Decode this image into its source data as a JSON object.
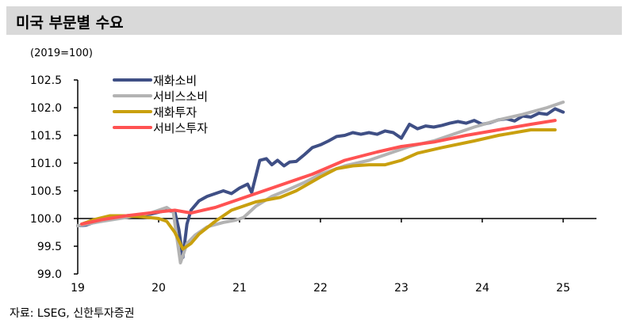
{
  "title": "미국 부문별 수요",
  "source": "자료: LSEG, 신한투자증권",
  "chart_data": {
    "type": "line",
    "title": "미국 부문별 수요",
    "ylabel": "(2019=100)",
    "xlabel": "",
    "xlim": [
      2019,
      2025.6
    ],
    "ylim": [
      99.0,
      102.5
    ],
    "yticks": [
      "102.5",
      "102.0",
      "101.5",
      "101.0",
      "100.5",
      "100.0",
      "99.5",
      "99.0"
    ],
    "ytick_values": [
      102.5,
      102.0,
      101.5,
      101.0,
      100.5,
      100.0,
      99.5,
      99.0
    ],
    "xticks": [
      "19",
      "20",
      "21",
      "22",
      "23",
      "24",
      "25"
    ],
    "xtick_values": [
      2019,
      2020,
      2021,
      2022,
      2023,
      2024,
      2025
    ],
    "grid": false,
    "legend_position": "top-left",
    "series": [
      {
        "name": "재화소비",
        "color": "#3f4f85",
        "x": [
          2019.0,
          2019.1,
          2019.3,
          2019.6,
          2019.9,
          2020.1,
          2020.2,
          2020.25,
          2020.3,
          2020.35,
          2020.4,
          2020.5,
          2020.6,
          2020.7,
          2020.8,
          2020.9,
          2021.0,
          2021.1,
          2021.15,
          2021.25,
          2021.33,
          2021.4,
          2021.47,
          2021.55,
          2021.62,
          2021.7,
          2021.8,
          2021.9,
          2022.0,
          2022.1,
          2022.2,
          2022.3,
          2022.4,
          2022.5,
          2022.6,
          2022.7,
          2022.8,
          2022.9,
          2023.0,
          2023.1,
          2023.2,
          2023.3,
          2023.4,
          2023.5,
          2023.6,
          2023.7,
          2023.8,
          2023.9,
          2024.0,
          2024.1,
          2024.2,
          2024.3,
          2024.4,
          2024.5,
          2024.6,
          2024.7,
          2024.8,
          2024.9,
          2025.0
        ],
        "y": [
          99.87,
          99.88,
          99.98,
          100.05,
          100.08,
          100.15,
          100.12,
          99.8,
          99.3,
          99.9,
          100.15,
          100.32,
          100.4,
          100.45,
          100.5,
          100.45,
          100.55,
          100.62,
          100.47,
          101.05,
          101.08,
          100.97,
          101.05,
          100.95,
          101.02,
          101.03,
          101.15,
          101.28,
          101.33,
          101.4,
          101.48,
          101.5,
          101.55,
          101.52,
          101.55,
          101.52,
          101.58,
          101.55,
          101.45,
          101.7,
          101.62,
          101.67,
          101.65,
          101.68,
          101.72,
          101.75,
          101.72,
          101.77,
          101.7,
          101.73,
          101.78,
          101.8,
          101.76,
          101.85,
          101.83,
          101.9,
          101.88,
          101.98,
          101.92
        ]
      },
      {
        "name": "서비스소비",
        "color": "#b3b3b3",
        "x": [
          2019.0,
          2019.3,
          2019.6,
          2019.9,
          2020.1,
          2020.18,
          2020.27,
          2020.35,
          2020.45,
          2020.6,
          2020.8,
          2020.95,
          2021.05,
          2021.2,
          2021.4,
          2021.6,
          2021.8,
          2022.0,
          2022.3,
          2022.6,
          2022.9,
          2023.1,
          2023.4,
          2023.6,
          2023.9,
          2024.2,
          2024.5,
          2024.8,
          2025.0
        ],
        "y": [
          99.87,
          99.95,
          100.02,
          100.1,
          100.2,
          100.12,
          99.2,
          99.55,
          99.7,
          99.85,
          99.93,
          99.97,
          100.02,
          100.22,
          100.4,
          100.52,
          100.65,
          100.8,
          100.95,
          101.05,
          101.2,
          101.3,
          101.4,
          101.5,
          101.65,
          101.78,
          101.88,
          102.0,
          102.1
        ]
      },
      {
        "name": "재화투자",
        "color": "#c9a00e",
        "x": [
          2019.05,
          2019.2,
          2019.4,
          2019.6,
          2019.8,
          2020.0,
          2020.1,
          2020.2,
          2020.3,
          2020.4,
          2020.5,
          2020.7,
          2020.9,
          2021.2,
          2021.5,
          2021.7,
          2022.0,
          2022.2,
          2022.4,
          2022.6,
          2022.8,
          2023.0,
          2023.2,
          2023.5,
          2023.9,
          2024.2,
          2024.6,
          2024.9
        ],
        "y": [
          99.9,
          99.98,
          100.05,
          100.05,
          100.03,
          100.0,
          99.95,
          99.75,
          99.45,
          99.55,
          99.72,
          99.95,
          100.15,
          100.3,
          100.38,
          100.5,
          100.75,
          100.9,
          100.95,
          100.97,
          100.97,
          101.05,
          101.18,
          101.28,
          101.4,
          101.5,
          101.6,
          101.6
        ]
      },
      {
        "name": "서비스투자",
        "color": "#ff5252",
        "x": [
          2019.05,
          2019.3,
          2019.6,
          2020.0,
          2020.2,
          2020.4,
          2020.7,
          2021.0,
          2021.4,
          2021.9,
          2022.3,
          2022.7,
          2023.0,
          2023.4,
          2023.8,
          2024.2,
          2024.6,
          2024.9
        ],
        "y": [
          99.9,
          99.98,
          100.05,
          100.12,
          100.15,
          100.1,
          100.2,
          100.35,
          100.55,
          100.8,
          101.05,
          101.2,
          101.3,
          101.38,
          101.5,
          101.6,
          101.7,
          101.77
        ]
      }
    ]
  }
}
